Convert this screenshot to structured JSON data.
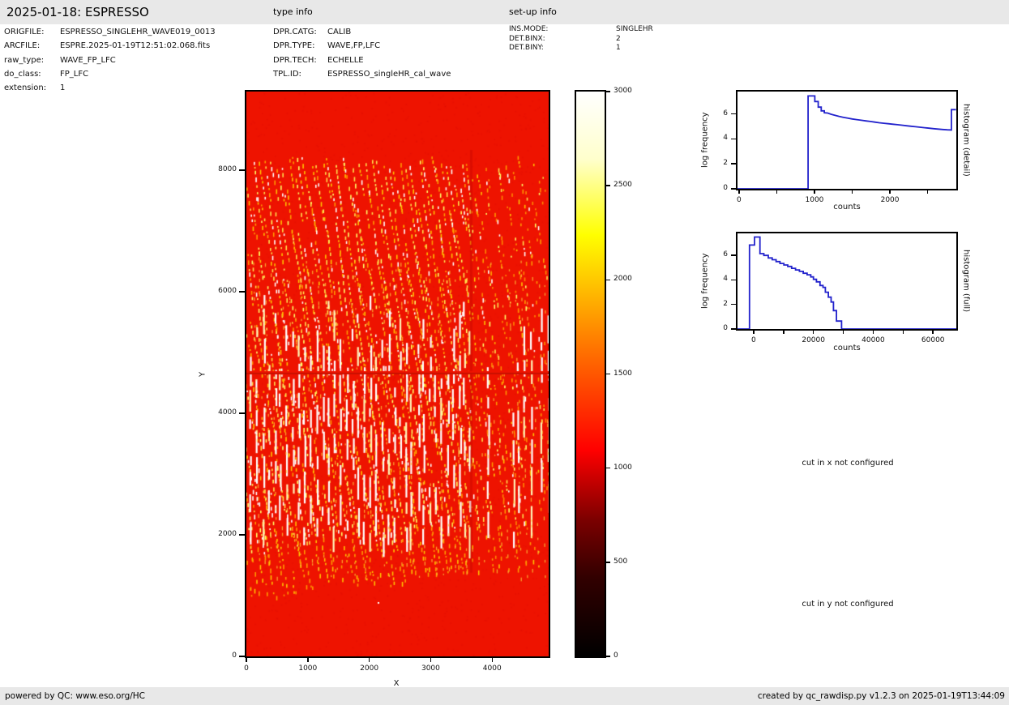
{
  "header": {
    "title": "2025-01-18: ESPRESSO",
    "type_info_label": "type info",
    "setup_info_label": "set-up info"
  },
  "file_info": {
    "rows": [
      {
        "label": "ORIGFILE:",
        "value": "ESPRESSO_SINGLEHR_WAVE019_0013"
      },
      {
        "label": "ARCFILE:",
        "value": "ESPRE.2025-01-19T12:51:02.068.fits"
      },
      {
        "label": "raw_type:",
        "value": "WAVE_FP_LFC"
      },
      {
        "label": "do_class:",
        "value": "FP_LFC"
      },
      {
        "label": "extension:",
        "value": "1"
      }
    ]
  },
  "type_info": {
    "rows": [
      {
        "label": "DPR.CATG:",
        "value": "CALIB"
      },
      {
        "label": "DPR.TYPE:",
        "value": "WAVE,FP,LFC"
      },
      {
        "label": "DPR.TECH:",
        "value": "ECHELLE"
      },
      {
        "label": "TPL.ID:",
        "value": "ESPRESSO_singleHR_cal_wave"
      }
    ]
  },
  "setup_info": {
    "rows": [
      {
        "label": "INS.MODE:",
        "value": "SINGLEHR"
      },
      {
        "label": "DET.BINX:",
        "value": "2"
      },
      {
        "label": "DET.BINY:",
        "value": "1"
      }
    ]
  },
  "messages": {
    "cut_x": "cut in x not configured",
    "cut_y": "cut in y not configured"
  },
  "footer": {
    "left": "powered by QC: www.eso.org/HC",
    "right": "created by qc_rawdisp.py v1.2.3 on 2025-01-19T13:44:09"
  },
  "colors": {
    "band_gray": "#e8e8e8",
    "image_background_red": "#ee1300",
    "histogram_line_blue": "#2222cc"
  },
  "chart_data": [
    {
      "id": "raw_image",
      "type": "heatmap",
      "xlabel": "X",
      "ylabel": "Y",
      "xlim": [
        0,
        4920
      ],
      "ylim": [
        0,
        9290
      ],
      "xticks": [
        0,
        1000,
        2000,
        3000,
        4000
      ],
      "yticks": [
        0,
        2000,
        4000,
        6000,
        8000
      ],
      "colormap": "hot",
      "colorbar": {
        "vmin": 0,
        "vmax": 3000,
        "ticks": [
          0,
          500,
          1000,
          1500,
          2000,
          2500,
          3000
        ]
      },
      "description": "Raw ESPRESSO echelle calibration frame: uniform red background (~1100 counts) with dense curved columns of dashed bright FP/LFC emission spots between y~1000 and y~8200, long white saturated line segments near mid-height, a thin darker horizontal feature line at y~4630 spanning the full width, and a detector seam with fainter pattern right of x~3620."
    },
    {
      "id": "histogram_detail",
      "type": "line",
      "xlabel": "counts",
      "ylabel": "log frequency",
      "right_label": "histogram (detail)",
      "xlim": [
        -20,
        2880
      ],
      "ylim": [
        0,
        7.8
      ],
      "xticks": [
        0,
        1000,
        2000
      ],
      "xticks_minor": [
        500,
        1500,
        2500
      ],
      "yticks": [
        0,
        2,
        4,
        6
      ],
      "grid": false,
      "line_color": "#2222cc",
      "points": [
        [
          -20,
          0
        ],
        [
          915,
          0
        ],
        [
          915,
          7.45
        ],
        [
          1005,
          7.45
        ],
        [
          1005,
          7.0
        ],
        [
          1050,
          7.0
        ],
        [
          1050,
          6.55
        ],
        [
          1090,
          6.55
        ],
        [
          1090,
          6.25
        ],
        [
          1130,
          6.25
        ],
        [
          1130,
          6.1
        ],
        [
          1175,
          6.08
        ],
        [
          1220,
          5.98
        ],
        [
          1270,
          5.9
        ],
        [
          1320,
          5.82
        ],
        [
          1380,
          5.74
        ],
        [
          1440,
          5.67
        ],
        [
          1500,
          5.6
        ],
        [
          1560,
          5.55
        ],
        [
          1620,
          5.5
        ],
        [
          1680,
          5.45
        ],
        [
          1740,
          5.4
        ],
        [
          1800,
          5.35
        ],
        [
          1860,
          5.3
        ],
        [
          1920,
          5.26
        ],
        [
          1980,
          5.22
        ],
        [
          2040,
          5.18
        ],
        [
          2100,
          5.14
        ],
        [
          2160,
          5.1
        ],
        [
          2220,
          5.06
        ],
        [
          2280,
          5.02
        ],
        [
          2340,
          4.98
        ],
        [
          2400,
          4.94
        ],
        [
          2460,
          4.9
        ],
        [
          2520,
          4.86
        ],
        [
          2580,
          4.82
        ],
        [
          2640,
          4.79
        ],
        [
          2700,
          4.76
        ],
        [
          2760,
          4.73
        ],
        [
          2815,
          4.72
        ],
        [
          2815,
          6.35
        ],
        [
          2876,
          6.35
        ]
      ]
    },
    {
      "id": "histogram_full",
      "type": "line",
      "xlabel": "counts",
      "ylabel": "log frequency",
      "right_label": "histogram (full)",
      "xlim": [
        -5400,
        67800
      ],
      "ylim": [
        0,
        7.8
      ],
      "xticks": [
        0,
        20000,
        40000,
        60000
      ],
      "xticks_minor": [
        10000,
        30000,
        50000
      ],
      "yticks": [
        0,
        2,
        4,
        6
      ],
      "grid": false,
      "line_color": "#2222cc",
      "points": [
        [
          -5400,
          0
        ],
        [
          -1400,
          0
        ],
        [
          -1400,
          6.85
        ],
        [
          300,
          6.85
        ],
        [
          300,
          7.5
        ],
        [
          2100,
          7.5
        ],
        [
          2100,
          6.15
        ],
        [
          3400,
          6.15
        ],
        [
          3400,
          6.0
        ],
        [
          4900,
          6.0
        ],
        [
          4900,
          5.8
        ],
        [
          6200,
          5.8
        ],
        [
          6200,
          5.65
        ],
        [
          7500,
          5.65
        ],
        [
          7500,
          5.5
        ],
        [
          8800,
          5.5
        ],
        [
          8800,
          5.35
        ],
        [
          10100,
          5.35
        ],
        [
          10100,
          5.22
        ],
        [
          11400,
          5.22
        ],
        [
          11400,
          5.1
        ],
        [
          12700,
          5.1
        ],
        [
          12700,
          4.95
        ],
        [
          14000,
          4.95
        ],
        [
          14000,
          4.82
        ],
        [
          15300,
          4.82
        ],
        [
          15300,
          4.7
        ],
        [
          16600,
          4.7
        ],
        [
          16600,
          4.55
        ],
        [
          17900,
          4.55
        ],
        [
          17900,
          4.42
        ],
        [
          19100,
          4.42
        ],
        [
          19100,
          4.25
        ],
        [
          20000,
          4.25
        ],
        [
          20000,
          4.05
        ],
        [
          21000,
          4.05
        ],
        [
          21000,
          3.85
        ],
        [
          22200,
          3.85
        ],
        [
          22200,
          3.55
        ],
        [
          23200,
          3.55
        ],
        [
          23200,
          3.4
        ],
        [
          24000,
          3.4
        ],
        [
          24000,
          3.0
        ],
        [
          25000,
          3.0
        ],
        [
          25000,
          2.6
        ],
        [
          25900,
          2.6
        ],
        [
          25900,
          2.2
        ],
        [
          26700,
          2.2
        ],
        [
          26700,
          1.5
        ],
        [
          27700,
          1.5
        ],
        [
          27700,
          0.65
        ],
        [
          29400,
          0.65
        ],
        [
          29400,
          0
        ],
        [
          67800,
          0
        ]
      ]
    }
  ]
}
